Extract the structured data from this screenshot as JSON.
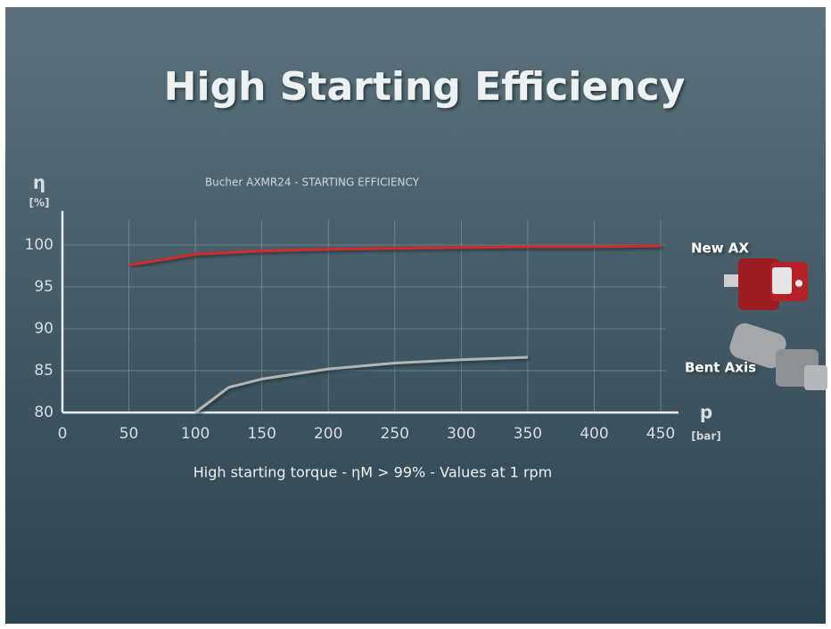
{
  "chart_data": {
    "type": "line",
    "title": "High Starting Efficiency",
    "subtitle": "Bucher AXMR24 - STARTING EFFICIENCY",
    "y_label": "η",
    "y_unit": "[%]",
    "x_label": "p",
    "x_unit": "[bar]",
    "caption": "High starting torque - ηM > 99% - Values at 1 rpm",
    "xlim": [
      0,
      450
    ],
    "xticks": [
      0,
      50,
      100,
      150,
      200,
      250,
      300,
      350,
      400,
      450
    ],
    "ylim": [
      80,
      103
    ],
    "yticks": [
      80,
      85,
      90,
      95,
      100
    ],
    "grid": true,
    "series": [
      {
        "name": "New AX",
        "color": "#d42a2a",
        "x": [
          50,
          100,
          150,
          200,
          250,
          300,
          350,
          400,
          450
        ],
        "values": [
          97.6,
          98.9,
          99.3,
          99.5,
          99.6,
          99.7,
          99.8,
          99.8,
          99.9
        ]
      },
      {
        "name": "Bent Axis",
        "color": "#b4b4b4",
        "x": [
          100,
          125,
          150,
          200,
          250,
          300,
          350
        ],
        "values": [
          80,
          83,
          84,
          85.2,
          85.9,
          86.3,
          86.6
        ]
      }
    ]
  }
}
